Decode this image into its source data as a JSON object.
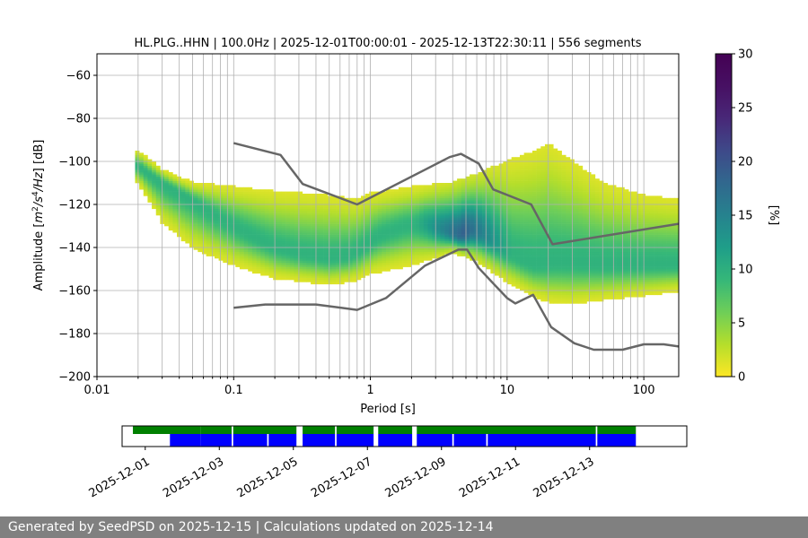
{
  "chart_data": [
    {
      "type": "heatmap",
      "title": "HL.PLG..HHN | 100.0Hz | 2025-12-01T00:00:01 - 2025-12-13T22:30:11 | 556 segments",
      "xlabel": "Period [s]",
      "ylabel_parts": [
        "Amplitude [",
        "m",
        "2",
        "/",
        "s",
        "4",
        "/",
        "Hz",
        "] [dB]"
      ],
      "x_scale": "log",
      "xlim": [
        0.01,
        180
      ],
      "ylim": [
        -200,
        -50
      ],
      "x_ticks": [
        0.01,
        0.1,
        1,
        10,
        100
      ],
      "x_tick_labels": [
        "0.01",
        "0.1",
        "1",
        "10",
        "100"
      ],
      "y_ticks": [
        -200,
        -180,
        -160,
        -140,
        -120,
        -100,
        -80,
        -60
      ],
      "y_tick_labels": [
        "−200",
        "−180",
        "−160",
        "−140",
        "−120",
        "−100",
        "−80",
        "−60"
      ],
      "grid": true,
      "colorbar": {
        "label": "[%]",
        "range": [
          0,
          30
        ],
        "ticks": [
          0,
          5,
          10,
          15,
          20,
          25,
          30
        ],
        "tick_labels": [
          "0",
          "5",
          "10",
          "15",
          "20",
          "25",
          "30"
        ]
      },
      "mode_curve": {
        "period": [
          0.02,
          0.03,
          0.05,
          0.07,
          0.1,
          0.15,
          0.2,
          0.3,
          0.5,
          0.7,
          0.9,
          1.2,
          1.8,
          2.5,
          3.5,
          4.5,
          5.5,
          6.5,
          8,
          10,
          13,
          16,
          22,
          30,
          50,
          100,
          180
        ],
        "amplitude_db": [
          -102,
          -110,
          -118,
          -124,
          -130,
          -136,
          -140,
          -143,
          -145,
          -144,
          -140,
          -134,
          -130,
          -129,
          -132,
          -134,
          -132,
          -133,
          -137,
          -142,
          -146,
          -148,
          -147,
          -147,
          -148,
          -148,
          -148
        ]
      },
      "spread_upper": {
        "period": [
          0.02,
          0.03,
          0.05,
          0.1,
          0.2,
          0.5,
          0.8,
          1,
          2,
          4,
          6,
          10,
          15,
          20,
          30,
          50,
          100,
          180
        ],
        "amplitude_db": [
          -95,
          -104,
          -110,
          -112,
          -114,
          -116,
          -118,
          -115,
          -112,
          -110,
          -106,
          -100,
          -96,
          -92,
          -100,
          -110,
          -116,
          -118
        ]
      },
      "spread_lower": {
        "period": [
          0.02,
          0.03,
          0.05,
          0.1,
          0.2,
          0.5,
          0.8,
          1,
          2,
          4,
          6,
          10,
          15,
          20,
          30,
          50,
          100,
          180
        ],
        "amplitude_db": [
          -110,
          -128,
          -140,
          -148,
          -154,
          -157,
          -155,
          -152,
          -148,
          -142,
          -146,
          -156,
          -162,
          -165,
          -166,
          -164,
          -162,
          -160
        ]
      },
      "series": [
        {
          "period": [
            0.1,
            0.22,
            0.32,
            0.8,
            3.8,
            4.6,
            6.2,
            7.9,
            15,
            21.5,
            180
          ],
          "amplitude_db": [
            -91.5,
            -97,
            -110.5,
            -120,
            -98,
            -96.5,
            -101,
            -113,
            -120,
            -138.5,
            -129
          ]
        },
        {
          "period": [
            0.1,
            0.17,
            0.4,
            0.8,
            1.3,
            2.5,
            4.4,
            5.1,
            6.2,
            8,
            10,
            11.5,
            15.5,
            21,
            31,
            43,
            70,
            100,
            140,
            180
          ],
          "amplitude_db": [
            -168,
            -166.5,
            -166.5,
            -169,
            -163.5,
            -148.5,
            -141,
            -141,
            -149.5,
            -157,
            -163.5,
            -166,
            -162,
            -177,
            -184.5,
            -187.5,
            -187.5,
            -185,
            -185,
            -186
          ]
        }
      ]
    },
    {
      "type": "bar",
      "x_tick_labels": [
        "2025-12-01",
        "2025-12-03",
        "2025-12-05",
        "2025-12-07",
        "2025-12-09",
        "2025-12-11",
        "2025-12-13"
      ],
      "x_ticks": [
        "2025-12-01",
        "2025-12-03",
        "2025-12-05",
        "2025-12-07",
        "2025-12-09",
        "2025-12-11",
        "2025-12-13"
      ],
      "xlim": [
        "2025-11-30T09:00",
        "2025-12-15T15:00"
      ],
      "colors": {
        "green": "#008000",
        "blue": "#0000ff"
      },
      "green_spans": [
        [
          "2025-11-30T16:00",
          "2025-12-02T12:00"
        ],
        [
          "2025-12-02T12:00",
          "2025-12-03T08:00"
        ],
        [
          "2025-12-03T09:00",
          "2025-12-05T02:00"
        ],
        [
          "2025-12-05T06:00",
          "2025-12-06T03:00"
        ],
        [
          "2025-12-06T04:00",
          "2025-12-07T04:00"
        ],
        [
          "2025-12-07T07:00",
          "2025-12-08T05:00"
        ],
        [
          "2025-12-08T08:00",
          "2025-12-13T04:00"
        ],
        [
          "2025-12-13T05:00",
          "2025-12-14T06:00"
        ]
      ],
      "blue_spans": [
        [
          "2025-12-01T16:00",
          "2025-12-02T12:00"
        ],
        [
          "2025-12-02T12:00",
          "2025-12-03T08:00"
        ],
        [
          "2025-12-03T09:00",
          "2025-12-04T07:00"
        ],
        [
          "2025-12-04T08:00",
          "2025-12-05T02:00"
        ],
        [
          "2025-12-05T06:00",
          "2025-12-06T03:00"
        ],
        [
          "2025-12-06T04:00",
          "2025-12-07T04:00"
        ],
        [
          "2025-12-07T07:00",
          "2025-12-08T05:00"
        ],
        [
          "2025-12-08T08:00",
          "2025-12-09T07:00"
        ],
        [
          "2025-12-09T08:00",
          "2025-12-10T05:00"
        ],
        [
          "2025-12-10T06:00",
          "2025-12-13T04:00"
        ],
        [
          "2025-12-13T05:00",
          "2025-12-14T06:00"
        ]
      ]
    }
  ],
  "footer": {
    "text": "Generated by SeedPSD on 2025-12-15 | Calculations updated on 2025-12-14"
  }
}
